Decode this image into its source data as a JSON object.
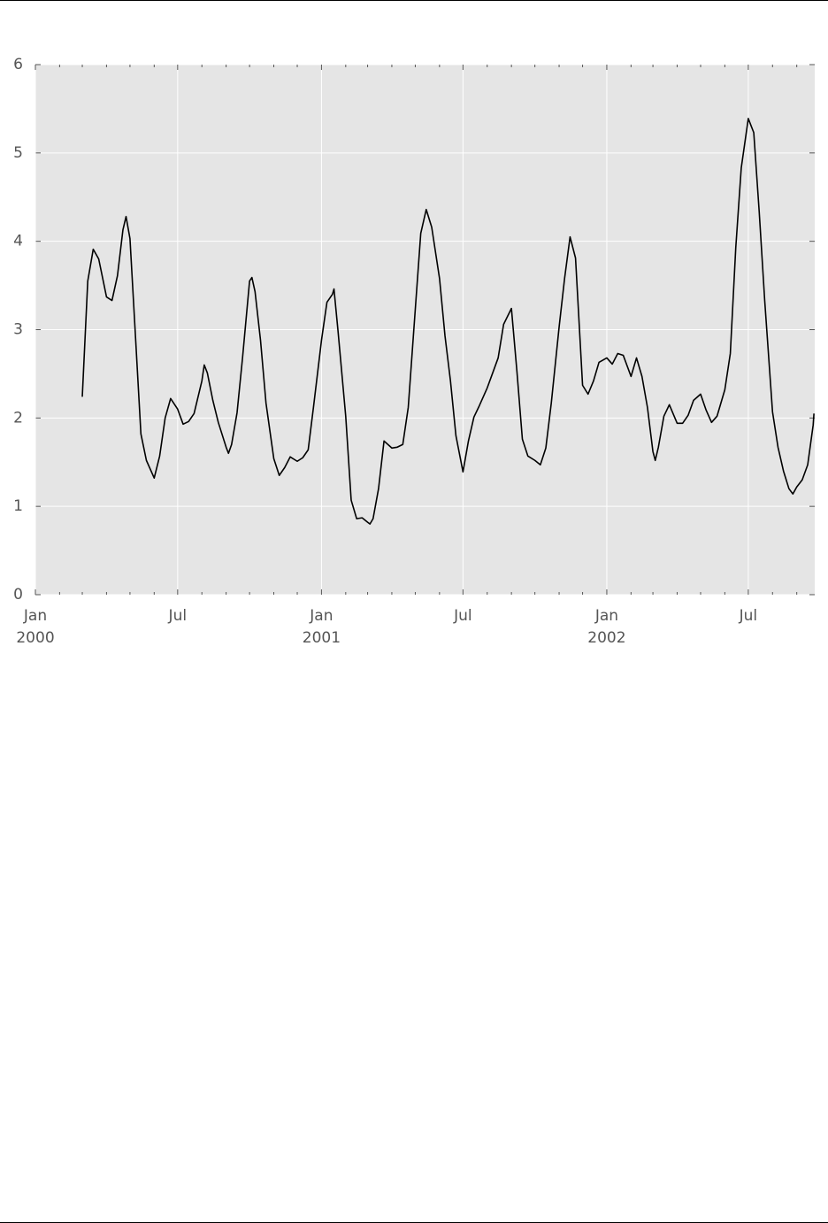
{
  "chart_data": {
    "type": "line",
    "color": "#000000",
    "grid": true,
    "xlim": [
      "2000-01-01",
      "2002-09-24"
    ],
    "ylim": [
      0,
      6
    ],
    "yticks": [
      0,
      1,
      2,
      3,
      4,
      5,
      6
    ],
    "xticks": [
      {
        "value": "2000-01-01",
        "label": "Jan\n2000"
      },
      {
        "value": "2000-07-01",
        "label": "Jul"
      },
      {
        "value": "2001-01-01",
        "label": "Jan\n2001"
      },
      {
        "value": "2001-07-01",
        "label": "Jul"
      },
      {
        "value": "2002-01-01",
        "label": "Jan\n2002"
      },
      {
        "value": "2002-07-01",
        "label": "Jul"
      }
    ],
    "xminorticks": [
      "2000-02-01",
      "2000-03-01",
      "2000-04-01",
      "2000-05-01",
      "2000-06-01",
      "2000-08-01",
      "2000-09-01",
      "2000-10-01",
      "2000-11-01",
      "2000-12-01",
      "2001-02-01",
      "2001-03-01",
      "2001-04-01",
      "2001-05-01",
      "2001-06-01",
      "2001-08-01",
      "2001-09-01",
      "2001-10-01",
      "2001-11-01",
      "2001-12-01",
      "2002-02-01",
      "2002-03-01",
      "2002-04-01",
      "2002-05-01",
      "2002-06-01",
      "2002-08-01",
      "2002-09-01"
    ],
    "x": [
      "2000-03-01",
      "2000-03-08",
      "2000-03-15",
      "2000-03-22",
      "2000-04-01",
      "2000-04-08",
      "2000-04-15",
      "2000-04-22",
      "2000-04-26",
      "2000-05-01",
      "2000-05-08",
      "2000-05-15",
      "2000-05-22",
      "2000-06-01",
      "2000-06-08",
      "2000-06-15",
      "2000-06-22",
      "2000-07-01",
      "2000-07-08",
      "2000-07-15",
      "2000-07-22",
      "2000-08-01",
      "2000-08-04",
      "2000-08-08",
      "2000-08-15",
      "2000-08-22",
      "2000-09-01",
      "2000-09-04",
      "2000-09-08",
      "2000-09-15",
      "2000-09-22",
      "2000-10-01",
      "2000-10-04",
      "2000-10-08",
      "2000-10-15",
      "2000-10-22",
      "2000-11-01",
      "2000-11-08",
      "2000-11-15",
      "2000-11-22",
      "2000-12-01",
      "2000-12-08",
      "2000-12-15",
      "2000-12-22",
      "2001-01-01",
      "2001-01-08",
      "2001-01-15",
      "2001-01-17",
      "2001-01-22",
      "2001-02-01",
      "2001-02-08",
      "2001-02-15",
      "2001-02-22",
      "2001-03-01",
      "2001-03-04",
      "2001-03-08",
      "2001-03-15",
      "2001-03-22",
      "2001-04-01",
      "2001-04-08",
      "2001-04-15",
      "2001-04-22",
      "2001-05-01",
      "2001-05-08",
      "2001-05-15",
      "2001-05-22",
      "2001-06-01",
      "2001-06-08",
      "2001-06-15",
      "2001-06-22",
      "2001-07-01",
      "2001-07-08",
      "2001-07-15",
      "2001-07-22",
      "2001-08-01",
      "2001-08-08",
      "2001-08-15",
      "2001-08-22",
      "2001-09-01",
      "2001-09-08",
      "2001-09-15",
      "2001-09-22",
      "2001-10-01",
      "2001-10-08",
      "2001-10-15",
      "2001-10-22",
      "2001-11-01",
      "2001-11-08",
      "2001-11-15",
      "2001-11-22",
      "2001-12-01",
      "2001-12-08",
      "2001-12-15",
      "2001-12-22",
      "2002-01-01",
      "2002-01-08",
      "2002-01-15",
      "2002-01-22",
      "2002-02-01",
      "2002-02-08",
      "2002-02-15",
      "2002-02-22",
      "2002-03-01",
      "2002-03-04",
      "2002-03-08",
      "2002-03-15",
      "2002-03-22",
      "2002-04-01",
      "2002-04-08",
      "2002-04-15",
      "2002-04-22",
      "2002-05-01",
      "2002-05-08",
      "2002-05-15",
      "2002-05-22",
      "2002-06-01",
      "2002-06-08",
      "2002-06-15",
      "2002-06-22",
      "2002-07-01",
      "2002-07-08",
      "2002-07-15",
      "2002-07-22",
      "2002-08-01",
      "2002-08-08",
      "2002-08-15",
      "2002-08-22",
      "2002-08-27",
      "2002-09-01",
      "2002-09-08",
      "2002-09-15",
      "2002-09-22",
      "2002-09-23"
    ],
    "values": [
      2.24,
      3.55,
      3.91,
      3.8,
      3.37,
      3.33,
      3.61,
      4.13,
      4.28,
      4.03,
      2.93,
      1.82,
      1.52,
      1.32,
      1.57,
      2.0,
      2.22,
      2.1,
      1.93,
      1.96,
      2.05,
      2.42,
      2.6,
      2.51,
      2.2,
      1.95,
      1.67,
      1.6,
      1.7,
      2.06,
      2.68,
      3.55,
      3.59,
      3.43,
      2.88,
      2.17,
      1.54,
      1.35,
      1.44,
      1.56,
      1.51,
      1.55,
      1.64,
      2.14,
      2.88,
      3.31,
      3.4,
      3.46,
      3.0,
      2.02,
      1.07,
      0.86,
      0.87,
      0.82,
      0.8,
      0.86,
      1.2,
      1.74,
      1.66,
      1.67,
      1.7,
      2.12,
      3.23,
      4.09,
      4.36,
      4.16,
      3.58,
      2.93,
      2.42,
      1.8,
      1.39,
      1.74,
      2.01,
      2.14,
      2.34,
      2.51,
      2.68,
      3.06,
      3.24,
      2.53,
      1.76,
      1.57,
      1.52,
      1.47,
      1.66,
      2.17,
      3.03,
      3.58,
      4.05,
      3.81,
      2.37,
      2.27,
      2.42,
      2.63,
      2.68,
      2.61,
      2.73,
      2.71,
      2.47,
      2.68,
      2.47,
      2.12,
      1.62,
      1.52,
      1.67,
      2.02,
      2.15,
      1.94,
      1.94,
      2.03,
      2.2,
      2.27,
      2.09,
      1.95,
      2.02,
      2.32,
      2.73,
      3.93,
      4.83,
      5.39,
      5.23,
      4.33,
      3.33,
      2.07,
      1.67,
      1.4,
      1.2,
      1.14,
      1.22,
      1.3,
      1.47,
      1.92,
      2.05
    ]
  }
}
